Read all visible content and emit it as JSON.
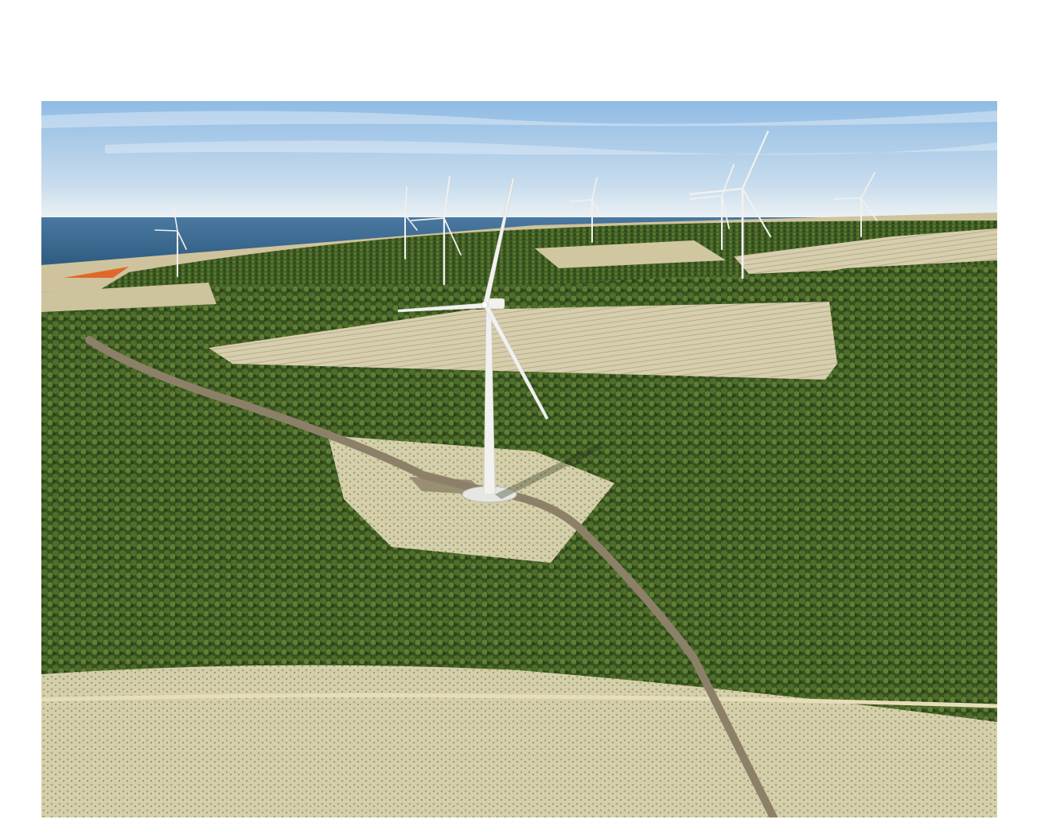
{
  "scene": {
    "subject": "aerial-wind-farm-visualisation",
    "turbine_count": 8,
    "colors": {
      "sky_top": "#9fc3e6",
      "sky_horizon": "#e9f1f6",
      "sea": "#3f6e96",
      "forest": "#3e5a23",
      "forest_light": "#5c7a33",
      "clearing": "#d8cda7",
      "clearfell": "#c9c4a3",
      "road": "#8d8069",
      "turbine": "#f1f1ef",
      "heath_orange": "#e0682a"
    }
  },
  "caption": ""
}
